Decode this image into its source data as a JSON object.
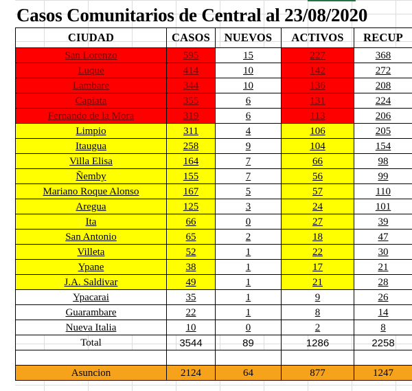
{
  "title": "Casos Comunitarios de Central al 23/08/2020",
  "headers": [
    "CIUDAD",
    "CASOS",
    "NUEVOS",
    "ACTIVOS",
    "RECUP"
  ],
  "rows": [
    {
      "ciudad": "San Lorenzo",
      "casos": "595",
      "nuevos": "15",
      "activos": "227",
      "recup": "368",
      "level": "red"
    },
    {
      "ciudad": "Luque",
      "casos": "414",
      "nuevos": "10",
      "activos": "142",
      "recup": "272",
      "level": "red"
    },
    {
      "ciudad": "Lambare",
      "casos": "344",
      "nuevos": "10",
      "activos": "136",
      "recup": "208",
      "level": "red"
    },
    {
      "ciudad": "Capiata",
      "casos": "355",
      "nuevos": "6",
      "activos": "131",
      "recup": "224",
      "level": "red"
    },
    {
      "ciudad": "Fernando de la Mora",
      "casos": "319",
      "nuevos": "6",
      "activos": "113",
      "recup": "206",
      "level": "red"
    },
    {
      "ciudad": "Limpio",
      "casos": "311",
      "nuevos": "4",
      "activos": "106",
      "recup": "205",
      "level": "yellow"
    },
    {
      "ciudad": "Itaugua",
      "casos": "258",
      "nuevos": "9",
      "activos": "104",
      "recup": "154",
      "level": "yellow"
    },
    {
      "ciudad": "Villa Elisa",
      "casos": "164",
      "nuevos": "7",
      "activos": "66",
      "recup": "98",
      "level": "yellow"
    },
    {
      "ciudad": "Ñemby",
      "casos": "155",
      "nuevos": "7",
      "activos": "56",
      "recup": "99",
      "level": "yellow"
    },
    {
      "ciudad": "Mariano Roque Alonso",
      "casos": "167",
      "nuevos": "5",
      "activos": "57",
      "recup": "110",
      "level": "yellow"
    },
    {
      "ciudad": "Aregua",
      "casos": "125",
      "nuevos": "3",
      "activos": "24",
      "recup": "101",
      "level": "yellow"
    },
    {
      "ciudad": "Ita",
      "casos": "66",
      "nuevos": "0",
      "activos": "27",
      "recup": "39",
      "level": "yellow"
    },
    {
      "ciudad": "San Antonio",
      "casos": "65",
      "nuevos": "2",
      "activos": "18",
      "recup": "47",
      "level": "yellow"
    },
    {
      "ciudad": "Villeta",
      "casos": "52",
      "nuevos": "1",
      "activos": "22",
      "recup": "30",
      "level": "yellow"
    },
    {
      "ciudad": "Ypane",
      "casos": "38",
      "nuevos": "1",
      "activos": "17",
      "recup": "21",
      "level": "yellow"
    },
    {
      "ciudad": "J.A. Saldivar",
      "casos": "49",
      "nuevos": "1",
      "activos": "21",
      "recup": "28",
      "level": "yellow"
    },
    {
      "ciudad": "Ypacarai",
      "casos": "35",
      "nuevos": "1",
      "activos": "9",
      "recup": "26",
      "level": "white"
    },
    {
      "ciudad": "Guarambare",
      "casos": "22",
      "nuevos": "1",
      "activos": "8",
      "recup": "14",
      "level": "white"
    },
    {
      "ciudad": "Nueva Italia",
      "casos": "10",
      "nuevos": "0",
      "activos": "2",
      "recup": "8",
      "level": "white"
    }
  ],
  "total": {
    "ciudad": "Total",
    "casos": "3544",
    "nuevos": "89",
    "activos": "1286",
    "recup": "2258"
  },
  "asuncion": {
    "ciudad": "Asuncion",
    "casos": "2124",
    "nuevos": "64",
    "activos": "877",
    "recup": "1247"
  },
  "colors": {
    "red": "#ff0000",
    "yellow": "#ffff00",
    "orange": "#f7a21b",
    "excel_green": "#217346"
  }
}
